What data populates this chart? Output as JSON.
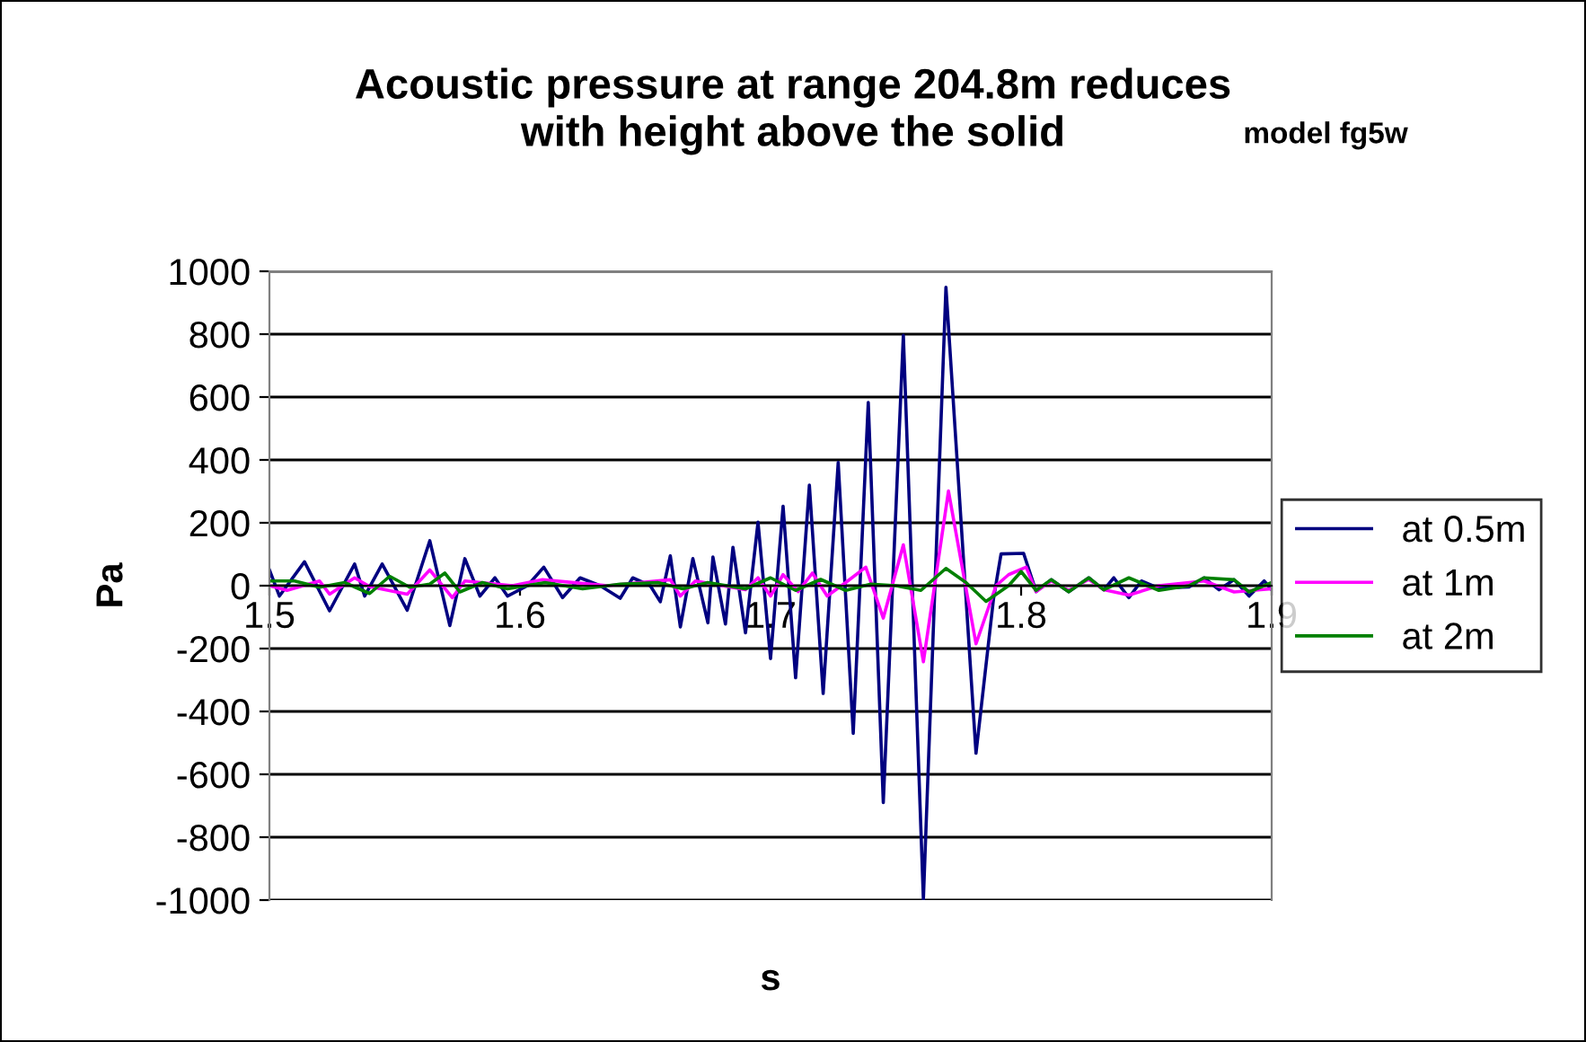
{
  "chart_data": {
    "type": "line",
    "title": "Acoustic pressure at range 204.8m reduces\nwith height above the solid",
    "subtitle": "model fg5w",
    "xlabel": "s",
    "ylabel": "Pa",
    "xlim": [
      1.5,
      1.9
    ],
    "xticks": [
      1.5,
      1.6,
      1.7,
      1.8,
      1.9
    ],
    "ylim": [
      -1000,
      1000
    ],
    "yticks": [
      -1000,
      -800,
      -600,
      -400,
      -200,
      0,
      200,
      400,
      600,
      800,
      1000
    ],
    "grid": "y",
    "legend": "right",
    "marker": "none",
    "line_style": "solid",
    "series": [
      {
        "name": "at 0.5m",
        "color": "#000080",
        "x": [
          1.5,
          1.504,
          1.514,
          1.524,
          1.534,
          1.538,
          1.545,
          1.555,
          1.564,
          1.572,
          1.578,
          1.584,
          1.59,
          1.595,
          1.603,
          1.6095,
          1.617,
          1.624,
          1.632,
          1.64,
          1.645,
          1.652,
          1.656,
          1.66,
          1.664,
          1.669,
          1.675,
          1.677,
          1.682,
          1.685,
          1.69,
          1.695,
          1.7,
          1.705,
          1.71,
          1.7155,
          1.721,
          1.727,
          1.733,
          1.739,
          1.745,
          1.753,
          1.761,
          1.77,
          1.782,
          1.789,
          1.792,
          1.801,
          1.806,
          1.812,
          1.819,
          1.827,
          1.833,
          1.837,
          1.843,
          1.848,
          1.855,
          1.867,
          1.873,
          1.879,
          1.885,
          1.891,
          1.897,
          1.9
        ],
        "values": [
          50,
          -33,
          76,
          -80,
          69,
          -33,
          69,
          -78,
          143,
          -127,
          86,
          -33,
          25,
          -33,
          0,
          59,
          -38,
          25,
          0,
          -40,
          25,
          0,
          -51,
          95,
          -131,
          86,
          -118,
          91,
          -122,
          122,
          -150,
          202,
          -232,
          253,
          -293,
          320,
          -343,
          392,
          -470,
          583,
          -690,
          796,
          -998,
          949,
          -533,
          -41,
          101,
          103,
          -19,
          19,
          -19,
          25,
          -13,
          25,
          -38,
          15,
          -8,
          -4,
          25,
          -13,
          19,
          -33,
          15,
          -13
        ]
      },
      {
        "name": "at 1m",
        "color": "#ff00ff",
        "x": [
          1.5,
          1.507,
          1.52,
          1.524,
          1.534,
          1.54,
          1.555,
          1.564,
          1.573,
          1.578,
          1.597,
          1.609,
          1.635,
          1.66,
          1.664,
          1.67,
          1.69,
          1.695,
          1.7,
          1.705,
          1.711,
          1.7167,
          1.7226,
          1.73,
          1.738,
          1.745,
          1.753,
          1.761,
          1.771,
          1.782,
          1.79,
          1.795,
          1.802,
          1.806,
          1.812,
          1.819,
          1.827,
          1.833,
          1.843,
          1.855,
          1.873,
          1.885,
          1.9
        ],
        "values": [
          0,
          -15,
          15,
          -27,
          25,
          -3,
          -27,
          50,
          -38,
          15,
          0,
          19,
          0,
          19,
          -33,
          15,
          -13,
          25,
          -33,
          35,
          -19,
          40,
          -33,
          10,
          59,
          -103,
          130,
          -242,
          301,
          -185,
          0,
          35,
          59,
          -19,
          15,
          -15,
          20,
          -13,
          -30,
          0,
          15,
          -20,
          -10
        ]
      },
      {
        "name": "at 2m",
        "color": "#008000",
        "x": [
          1.5,
          1.51,
          1.52,
          1.53,
          1.54,
          1.548,
          1.556,
          1.564,
          1.57,
          1.576,
          1.585,
          1.595,
          1.61,
          1.625,
          1.64,
          1.655,
          1.665,
          1.675,
          1.69,
          1.7,
          1.71,
          1.72,
          1.73,
          1.74,
          1.75,
          1.76,
          1.77,
          1.778,
          1.786,
          1.795,
          1.8,
          1.806,
          1.812,
          1.819,
          1.827,
          1.833,
          1.843,
          1.855,
          1.867,
          1.873,
          1.885,
          1.891,
          1.9
        ],
        "values": [
          15,
          15,
          -5,
          10,
          -25,
          30,
          -5,
          5,
          40,
          -20,
          10,
          -10,
          10,
          -10,
          5,
          10,
          -10,
          10,
          -10,
          25,
          -15,
          20,
          -15,
          5,
          0,
          -15,
          55,
          10,
          -50,
          0,
          45,
          -15,
          19,
          -19,
          25,
          -13,
          25,
          -15,
          0,
          25,
          19,
          -20,
          10
        ]
      }
    ]
  }
}
